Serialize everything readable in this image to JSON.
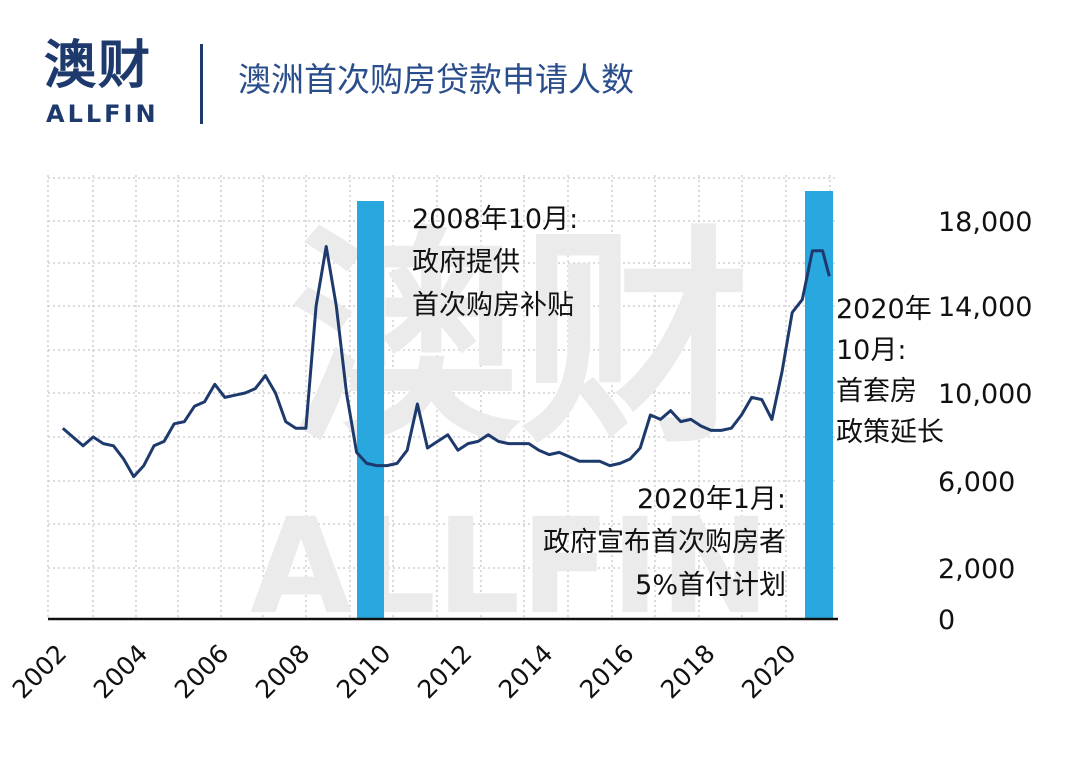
{
  "brand": {
    "name_cn": "澳财",
    "name_en": "ALLFIN",
    "watermark_cn": "澳财",
    "watermark_en": "ALLFIN"
  },
  "title": "澳洲首次购房贷款申请人数",
  "colors": {
    "line": "#1e3a6d",
    "highlight": "#29a8e0",
    "title": "#2a4d8c",
    "logo": "#1e3a6d"
  },
  "chart_data": {
    "type": "line",
    "title": "澳洲首次购房贷款申请人数",
    "xlabel": "",
    "ylabel": "",
    "x_ticks": [
      "2002",
      "2004",
      "2006",
      "2008",
      "2010",
      "2012",
      "2014",
      "2016",
      "2018",
      "2020"
    ],
    "y_ticks": [
      "0",
      "2,000",
      "6,000",
      "10,000",
      "14,000",
      "18,000"
    ],
    "ylim": [
      0,
      20000
    ],
    "grid": true,
    "axis_side": "right",
    "highlights": [
      {
        "from": "2008-09",
        "to": "2009-06"
      },
      {
        "from": "2019-12",
        "to": "2020-10"
      }
    ],
    "annotations": [
      {
        "lines": [
          "2008年10月:",
          "政府提供",
          "首次购房补贴"
        ]
      },
      {
        "lines": [
          "2020年1月:",
          "政府宣布首次购房者",
          "5%首付计划"
        ]
      },
      {
        "lines": [
          "2020年",
          "10月:",
          "首套房",
          "政策延长"
        ]
      }
    ],
    "series": [
      {
        "x": [
          "2002-03",
          "2002-06",
          "2002-09",
          "2002-12",
          "2003-03",
          "2003-06",
          "2003-09",
          "2003-12",
          "2004-03",
          "2004-06",
          "2004-09",
          "2004-12",
          "2005-03",
          "2005-06",
          "2005-09",
          "2005-12",
          "2006-03",
          "2006-06",
          "2006-09",
          "2006-12",
          "2007-03",
          "2007-06",
          "2007-09",
          "2007-12",
          "2008-03",
          "2008-06",
          "2008-09",
          "2008-12",
          "2009-03",
          "2009-06",
          "2009-09",
          "2009-12",
          "2010-03",
          "2010-06",
          "2010-09",
          "2010-12",
          "2011-03",
          "2011-06",
          "2011-09",
          "2011-12",
          "2012-03",
          "2012-06",
          "2012-09",
          "2012-12",
          "2013-03",
          "2013-06",
          "2013-09",
          "2013-12",
          "2014-03",
          "2014-06",
          "2014-09",
          "2014-12",
          "2015-03",
          "2015-06",
          "2015-09",
          "2015-12",
          "2016-03",
          "2016-06",
          "2016-09",
          "2016-12",
          "2017-03",
          "2017-06",
          "2017-09",
          "2017-12",
          "2018-03",
          "2018-06",
          "2018-09",
          "2018-12",
          "2019-03",
          "2019-06",
          "2019-09",
          "2019-12",
          "2020-03",
          "2020-06",
          "2020-09",
          "2020-12",
          "2021-02"
        ],
        "values": [
          8400,
          8000,
          7600,
          8000,
          7700,
          7600,
          7000,
          6200,
          6700,
          7600,
          7800,
          8600,
          8700,
          9400,
          9600,
          10400,
          9800,
          9900,
          10000,
          10200,
          10800,
          10000,
          8700,
          8400,
          8400,
          14000,
          16800,
          14000,
          10000,
          7300,
          6800,
          6700,
          6700,
          6800,
          7400,
          9500,
          7500,
          7800,
          8100,
          7400,
          7700,
          7800,
          8100,
          7800,
          7700,
          7700,
          7700,
          7400,
          7200,
          7300,
          7100,
          6900,
          6900,
          6900,
          6700,
          6800,
          7000,
          7500,
          9000,
          8800,
          9200,
          8700,
          8800,
          8500,
          8300,
          8300,
          8400,
          9000,
          9800,
          9700,
          8800,
          11000,
          13700,
          14300,
          16600,
          16600,
          15400
        ]
      }
    ]
  }
}
